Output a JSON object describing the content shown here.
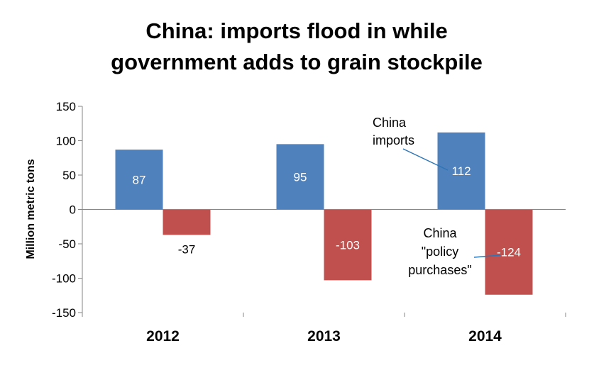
{
  "chart_data": {
    "type": "bar",
    "title_lines": [
      "China: imports flood in while",
      "government adds to grain stockpile"
    ],
    "ylabel": "Million metric tons",
    "xlabel": "",
    "categories": [
      "2012",
      "2013",
      "2014"
    ],
    "ylim": [
      -150,
      150
    ],
    "yticks": [
      150,
      100,
      50,
      0,
      -50,
      -100,
      -150
    ],
    "ytick_labels": [
      "150",
      "100",
      "50",
      "0",
      "-50",
      "-100",
      "-150"
    ],
    "grid": false,
    "legend": "none",
    "series": [
      {
        "values": [
          87,
          95,
          112
        ],
        "labels": [
          "87",
          "95",
          "112"
        ],
        "color": "#4f81bd",
        "label_color": "#ffffff"
      },
      {
        "values": [
          -37,
          -103,
          -124
        ],
        "labels": [
          "-37",
          "-103",
          "-124"
        ],
        "color": "#c0504d",
        "label_color": "#ffffff",
        "outside_label_color": "#000000"
      }
    ],
    "annotations": [
      {
        "lines": [
          "China",
          "imports"
        ]
      },
      {
        "lines": [
          "China",
          "\"policy",
          "purchases\""
        ]
      }
    ],
    "annotation_line_color": "#2e75b6"
  }
}
